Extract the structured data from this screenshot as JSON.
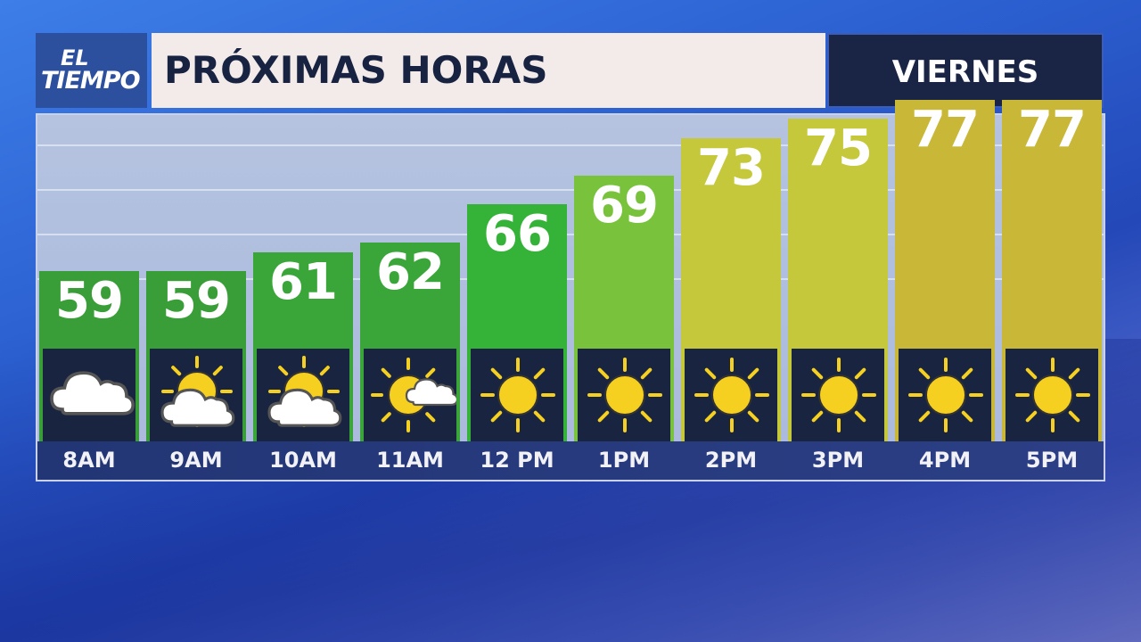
{
  "header": {
    "logo_line1": "EL",
    "logo_line2": "TIEMPO",
    "title": "PRÓXIMAS HORAS",
    "day": "VIERNES"
  },
  "chart_data": {
    "type": "bar",
    "categories": [
      "8AM",
      "9AM",
      "10AM",
      "11AM",
      "12 PM",
      "1PM",
      "2PM",
      "3PM",
      "4PM",
      "5PM"
    ],
    "values": [
      59,
      59,
      61,
      62,
      66,
      69,
      73,
      75,
      77,
      77
    ],
    "conditions": [
      "cloudy",
      "partly-cloudy",
      "partly-cloudy",
      "mostly-sunny",
      "sunny",
      "sunny",
      "sunny",
      "sunny",
      "sunny",
      "sunny"
    ],
    "colors": [
      "#3a9e38",
      "#3a9e38",
      "#3aa63a",
      "#3aa63a",
      "#35b338",
      "#78c23c",
      "#c6c83c",
      "#c6c83c",
      "#c9b838",
      "#c9b838"
    ],
    "grid": true
  }
}
